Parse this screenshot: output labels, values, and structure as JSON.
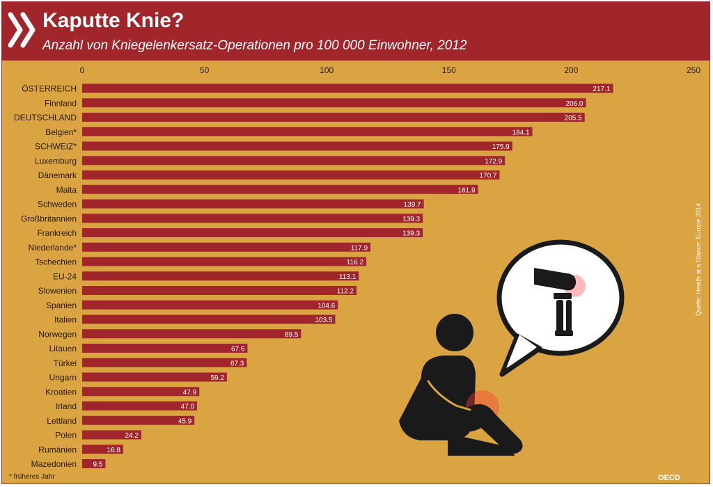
{
  "header": {
    "title": "Kaputte Knie?",
    "subtitle": "Anzahl von Kniegelenkersatz-Operationen pro 100 000 Einwohner, 2012",
    "logo_icon": "chevron-double-right-icon"
  },
  "colors": {
    "background": "#d9a441",
    "header": "#a0262b",
    "bar": "#a0262b",
    "text": "#2a1a0a",
    "value_text": "#ffffff"
  },
  "chart_data": {
    "type": "bar",
    "orientation": "horizontal",
    "xlim": [
      0,
      250
    ],
    "xticks": [
      0,
      50,
      100,
      150,
      200,
      250
    ],
    "grid": false,
    "categories": [
      "ÖSTERREICH",
      "Finnland",
      "DEUTSCHLAND",
      "Belgien*",
      "SCHWEIZ*",
      "Luxemburg",
      "Dänemark",
      "Malta",
      "Schweden",
      "Großbritannien",
      "Frankreich",
      "Niederlande*",
      "Tschechien",
      "EU-24",
      "Slowenien",
      "Spanien",
      "Italien",
      "Norwegen",
      "Litauen",
      "Türkei",
      "Ungarn",
      "Kroatien",
      "Irland",
      "Lettland",
      "Polen",
      "Rumänien",
      "Mazedonien"
    ],
    "values": [
      217.1,
      206.0,
      205.5,
      184.1,
      175.9,
      172.9,
      170.7,
      161.9,
      139.7,
      139.3,
      139.3,
      117.9,
      116.2,
      113.1,
      112.2,
      104.6,
      103.5,
      89.5,
      67.6,
      67.3,
      59.2,
      47.9,
      47.0,
      45.9,
      24.2,
      16.8,
      9.5
    ],
    "value_labels": [
      "217.1",
      "206.0",
      "205.5",
      "184.1",
      "175.9",
      "172.9",
      "170.7",
      "161.9",
      "139.7",
      "139.3",
      "139.3",
      "117.9",
      "116.2",
      "113.1",
      "112.2",
      "104.6",
      "103.5",
      "89.5",
      "67.6",
      "67.3",
      "59.2",
      "47.9",
      "47.0",
      "45.9",
      "24.2",
      "16.8",
      "9.5"
    ]
  },
  "source_note": "Quelle: Health at a Glance: Europe 2014",
  "footnote": "* früheres Jahr",
  "brand": "OECD",
  "illustration_icons": [
    "person-holding-knee-icon",
    "knee-joint-icon"
  ]
}
